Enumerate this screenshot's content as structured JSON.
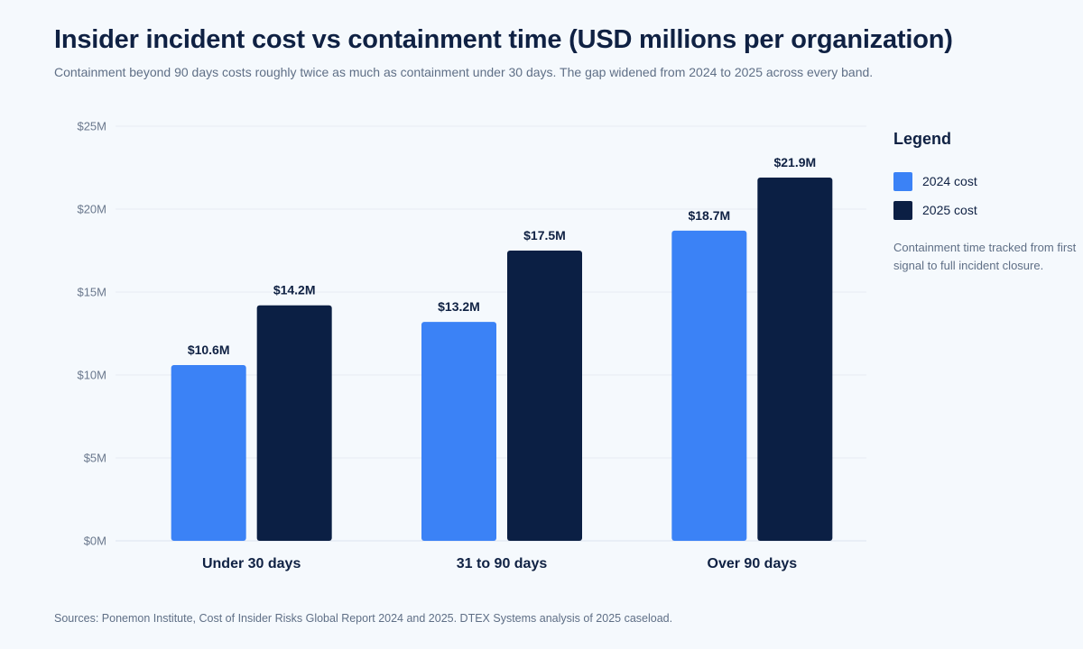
{
  "chart_data": {
    "type": "bar",
    "title": "Insider incident cost vs containment time (USD millions per organization)",
    "subtitle": "Containment beyond 90 days costs roughly twice as much as containment under 30 days. The gap widened from 2024 to 2025 across every band.",
    "xlabel": "",
    "ylabel": "",
    "categories": [
      "Under 30 days",
      "31 to 90 days",
      "Over 90 days"
    ],
    "series": [
      {
        "name": "2024 cost",
        "color": "#3b82f6",
        "values": [
          10.6,
          13.2,
          18.7
        ],
        "labels": [
          "$10.6M",
          "$13.2M",
          "$18.7M"
        ]
      },
      {
        "name": "2025 cost",
        "color": "#0b1f44",
        "values": [
          14.2,
          17.5,
          21.9
        ],
        "labels": [
          "$14.2M",
          "$17.5M",
          "$21.9M"
        ]
      }
    ],
    "ylim": [
      0,
      25
    ],
    "yticks": [
      0,
      5,
      10,
      15,
      20,
      25
    ],
    "ytick_labels": [
      "$0M",
      "$5M",
      "$10M",
      "$15M",
      "$20M",
      "$25M"
    ],
    "grid": true,
    "legend_position": "right"
  },
  "legend": {
    "title": "Legend",
    "items": [
      {
        "label": "2024 cost",
        "color": "#3b82f6"
      },
      {
        "label": "2025 cost",
        "color": "#0b1f44"
      }
    ],
    "note": "Containment time tracked from first signal to full incident closure."
  },
  "source": "Sources: Ponemon Institute, Cost of Insider Risks Global Report 2024 and 2025. DTEX Systems analysis of 2025 caseload."
}
